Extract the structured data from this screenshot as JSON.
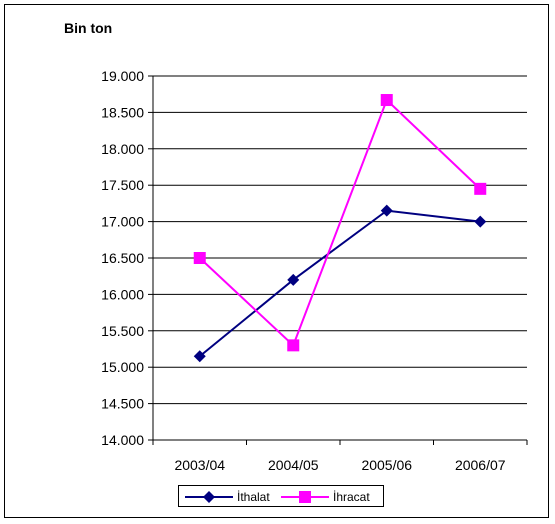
{
  "chart_data": {
    "type": "line",
    "title": "",
    "unit_label": "Bin ton",
    "xlabel": "",
    "ylabel": "",
    "categories": [
      "2003/04",
      "2004/05",
      "2005/06",
      "2006/07"
    ],
    "ylim": [
      14000,
      19000
    ],
    "ytick_step": 500,
    "ytick_labels": [
      "14.000",
      "14.500",
      "15.000",
      "15.500",
      "16.000",
      "16.500",
      "17.000",
      "17.500",
      "18.000",
      "18.500",
      "19.000"
    ],
    "grid": "horizontal",
    "legend_position": "bottom",
    "series": [
      {
        "name": "İthalat",
        "color": "#000080",
        "marker": "diamond",
        "values": [
          15150,
          16200,
          17150,
          17000
        ]
      },
      {
        "name": "İhracat",
        "color": "#FF00FF",
        "marker": "square",
        "values": [
          16500,
          15300,
          18670,
          17450
        ]
      }
    ]
  }
}
